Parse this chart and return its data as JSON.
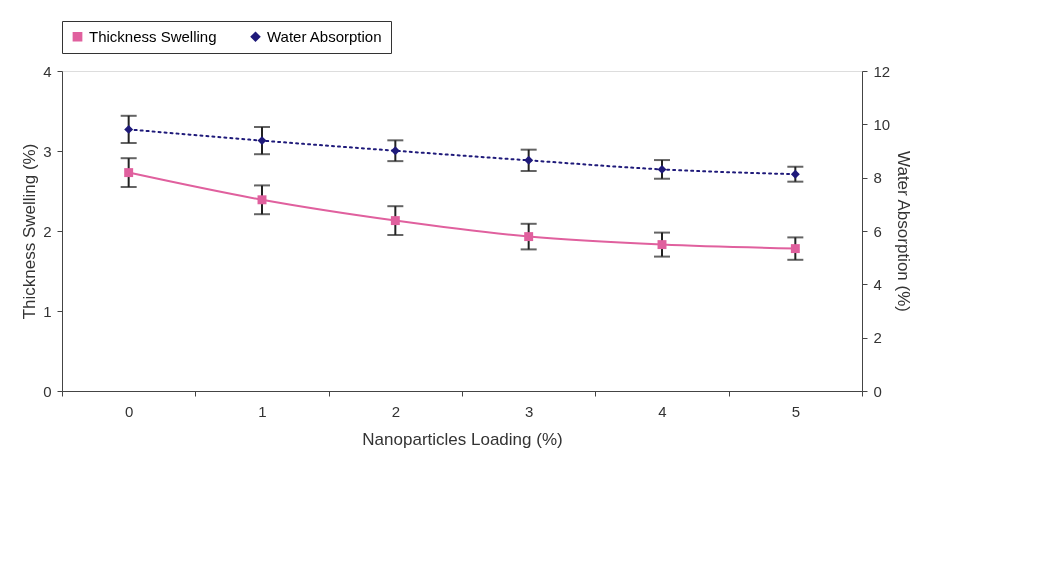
{
  "chart_data": {
    "type": "line",
    "xlabel": "Nanoparticles Loading (%)",
    "ylabel": "Thickness Swelling (%)",
    "y2label": "Water Absorption (%)",
    "categories": [
      "0",
      "1",
      "2",
      "3",
      "4",
      "5"
    ],
    "series": [
      {
        "name": "Thickness Swelling",
        "color": "#e0609e",
        "values": [
          2.73,
          2.39,
          2.13,
          1.93,
          1.83,
          1.78
        ],
        "errors": [
          0.18,
          0.18,
          0.18,
          0.16,
          0.15,
          0.14
        ],
        "marker": "square",
        "line_style": "solid"
      },
      {
        "name": "Water Absorption",
        "color": "#1f1a7a",
        "values": [
          9.81,
          9.39,
          9.01,
          8.65,
          8.31,
          8.13
        ],
        "errors": [
          0.51,
          0.51,
          0.39,
          0.4,
          0.35,
          0.28
        ],
        "marker": "diamond",
        "line_style": "dotted",
        "axis": "y2"
      }
    ],
    "ylim": [
      0,
      4
    ],
    "yticks": [
      0,
      1,
      2,
      3,
      4
    ],
    "y2lim": [
      0,
      12
    ],
    "y2ticks": [
      0,
      2,
      4,
      6,
      8,
      10,
      12
    ],
    "grid": false,
    "legend": "top"
  }
}
